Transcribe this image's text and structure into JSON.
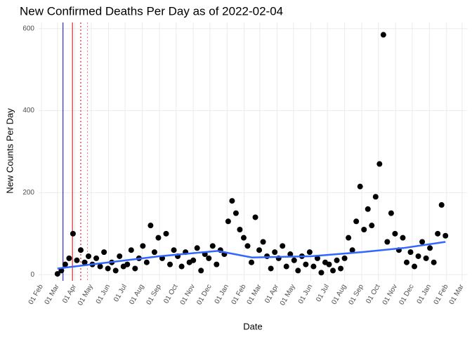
{
  "chart_data": {
    "type": "scatter",
    "title": "New Confirmed Deaths Per Day as of 2022-02-04",
    "x_label": "Date",
    "y_label": "New Counts Per Day",
    "xlim": [
      "2020-01-27",
      "2022-03-10"
    ],
    "ylim": [
      -15,
      615
    ],
    "yticks": [
      0,
      200,
      400,
      600
    ],
    "xticks": [
      {
        "value": "2020-02-01",
        "label": "01 Feb"
      },
      {
        "value": "2020-03-01",
        "label": "01 Mar"
      },
      {
        "value": "2020-04-01",
        "label": "01 Apr"
      },
      {
        "value": "2020-05-01",
        "label": "01 May"
      },
      {
        "value": "2020-06-01",
        "label": "01 Jun"
      },
      {
        "value": "2020-07-01",
        "label": "01 Jul"
      },
      {
        "value": "2020-08-01",
        "label": "01 Aug"
      },
      {
        "value": "2020-09-01",
        "label": "01 Sep"
      },
      {
        "value": "2020-10-01",
        "label": "01 Oct"
      },
      {
        "value": "2020-11-01",
        "label": "01 Nov"
      },
      {
        "value": "2020-12-01",
        "label": "01 Dec"
      },
      {
        "value": "2021-01-01",
        "label": "01 Jan"
      },
      {
        "value": "2021-02-01",
        "label": "01 Feb"
      },
      {
        "value": "2021-03-01",
        "label": "01 Mar"
      },
      {
        "value": "2021-04-01",
        "label": "01 Apr"
      },
      {
        "value": "2021-05-01",
        "label": "01 May"
      },
      {
        "value": "2021-06-01",
        "label": "01 Jun"
      },
      {
        "value": "2021-07-01",
        "label": "01 Jul"
      },
      {
        "value": "2021-08-01",
        "label": "01 Aug"
      },
      {
        "value": "2021-09-01",
        "label": "01 Sep"
      },
      {
        "value": "2021-10-01",
        "label": "01 Oct"
      },
      {
        "value": "2021-11-01",
        "label": "01 Nov"
      },
      {
        "value": "2021-12-01",
        "label": "01 Dec"
      },
      {
        "value": "2022-01-01",
        "label": "01 Jan"
      },
      {
        "value": "2022-02-01",
        "label": "01 Feb"
      },
      {
        "value": "2022-03-01",
        "label": "01 Mar"
      }
    ],
    "grid": true,
    "series": [
      {
        "name": "daily",
        "color": "#000000",
        "x": [
          "2020-03-01",
          "2020-03-08",
          "2020-03-15",
          "2020-03-22",
          "2020-03-29",
          "2020-04-05",
          "2020-04-12",
          "2020-04-19",
          "2020-04-26",
          "2020-05-03",
          "2020-05-10",
          "2020-05-17",
          "2020-05-24",
          "2020-05-31",
          "2020-06-07",
          "2020-06-14",
          "2020-06-21",
          "2020-06-28",
          "2020-07-05",
          "2020-07-12",
          "2020-07-19",
          "2020-07-26",
          "2020-08-02",
          "2020-08-09",
          "2020-08-16",
          "2020-08-23",
          "2020-08-30",
          "2020-09-06",
          "2020-09-13",
          "2020-09-20",
          "2020-09-27",
          "2020-10-04",
          "2020-10-11",
          "2020-10-18",
          "2020-10-25",
          "2020-11-01",
          "2020-11-08",
          "2020-11-15",
          "2020-11-22",
          "2020-11-29",
          "2020-12-06",
          "2020-12-13",
          "2020-12-20",
          "2020-12-27",
          "2021-01-03",
          "2021-01-10",
          "2021-01-17",
          "2021-01-24",
          "2021-01-31",
          "2021-02-07",
          "2021-02-14",
          "2021-02-21",
          "2021-02-28",
          "2021-03-07",
          "2021-03-14",
          "2021-03-21",
          "2021-03-28",
          "2021-04-04",
          "2021-04-11",
          "2021-04-18",
          "2021-04-25",
          "2021-05-02",
          "2021-05-09",
          "2021-05-16",
          "2021-05-23",
          "2021-05-30",
          "2021-06-06",
          "2021-06-13",
          "2021-06-20",
          "2021-06-27",
          "2021-07-04",
          "2021-07-11",
          "2021-07-18",
          "2021-07-25",
          "2021-08-01",
          "2021-08-08",
          "2021-08-15",
          "2021-08-22",
          "2021-08-29",
          "2021-09-05",
          "2021-09-12",
          "2021-09-19",
          "2021-09-26",
          "2021-10-03",
          "2021-10-10",
          "2021-10-17",
          "2021-10-24",
          "2021-10-31",
          "2021-11-07",
          "2021-11-14",
          "2021-11-21",
          "2021-11-28",
          "2021-12-05",
          "2021-12-12",
          "2021-12-19",
          "2021-12-26",
          "2022-01-02",
          "2022-01-09",
          "2022-01-16",
          "2022-01-23",
          "2022-01-30"
        ],
        "values": [
          2,
          10,
          25,
          40,
          100,
          35,
          60,
          30,
          45,
          25,
          40,
          20,
          55,
          15,
          30,
          10,
          45,
          20,
          25,
          60,
          15,
          40,
          70,
          30,
          120,
          55,
          90,
          40,
          100,
          25,
          60,
          45,
          20,
          55,
          30,
          35,
          65,
          10,
          50,
          40,
          70,
          25,
          60,
          50,
          130,
          180,
          150,
          110,
          90,
          70,
          30,
          140,
          60,
          80,
          45,
          15,
          55,
          40,
          70,
          20,
          50,
          35,
          10,
          45,
          25,
          55,
          20,
          40,
          5,
          30,
          25,
          10,
          35,
          15,
          40,
          90,
          60,
          130,
          215,
          110,
          160,
          120,
          190,
          270,
          585,
          80,
          150,
          100,
          60,
          90,
          30,
          55,
          20,
          45,
          80,
          40,
          65,
          30,
          100,
          170,
          95
        ]
      },
      {
        "name": "trend",
        "color": "#3366ff",
        "x": [
          "2020-03-01",
          "2020-06-01",
          "2020-09-01",
          "2020-12-15",
          "2021-02-15",
          "2021-06-01",
          "2021-09-01",
          "2021-11-15",
          "2022-01-30"
        ],
        "values": [
          15,
          30,
          45,
          58,
          42,
          45,
          55,
          65,
          80
        ]
      }
    ],
    "reference_lines": [
      {
        "x": "2020-03-11",
        "color": "#0000cc",
        "style": "solid"
      },
      {
        "x": "2020-03-28",
        "color": "#cc0000",
        "style": "solid"
      },
      {
        "x": "2020-04-12",
        "color": "#cc0000",
        "style": "dotted"
      },
      {
        "x": "2020-04-24",
        "color": "#e08080",
        "style": "dotted"
      }
    ]
  }
}
